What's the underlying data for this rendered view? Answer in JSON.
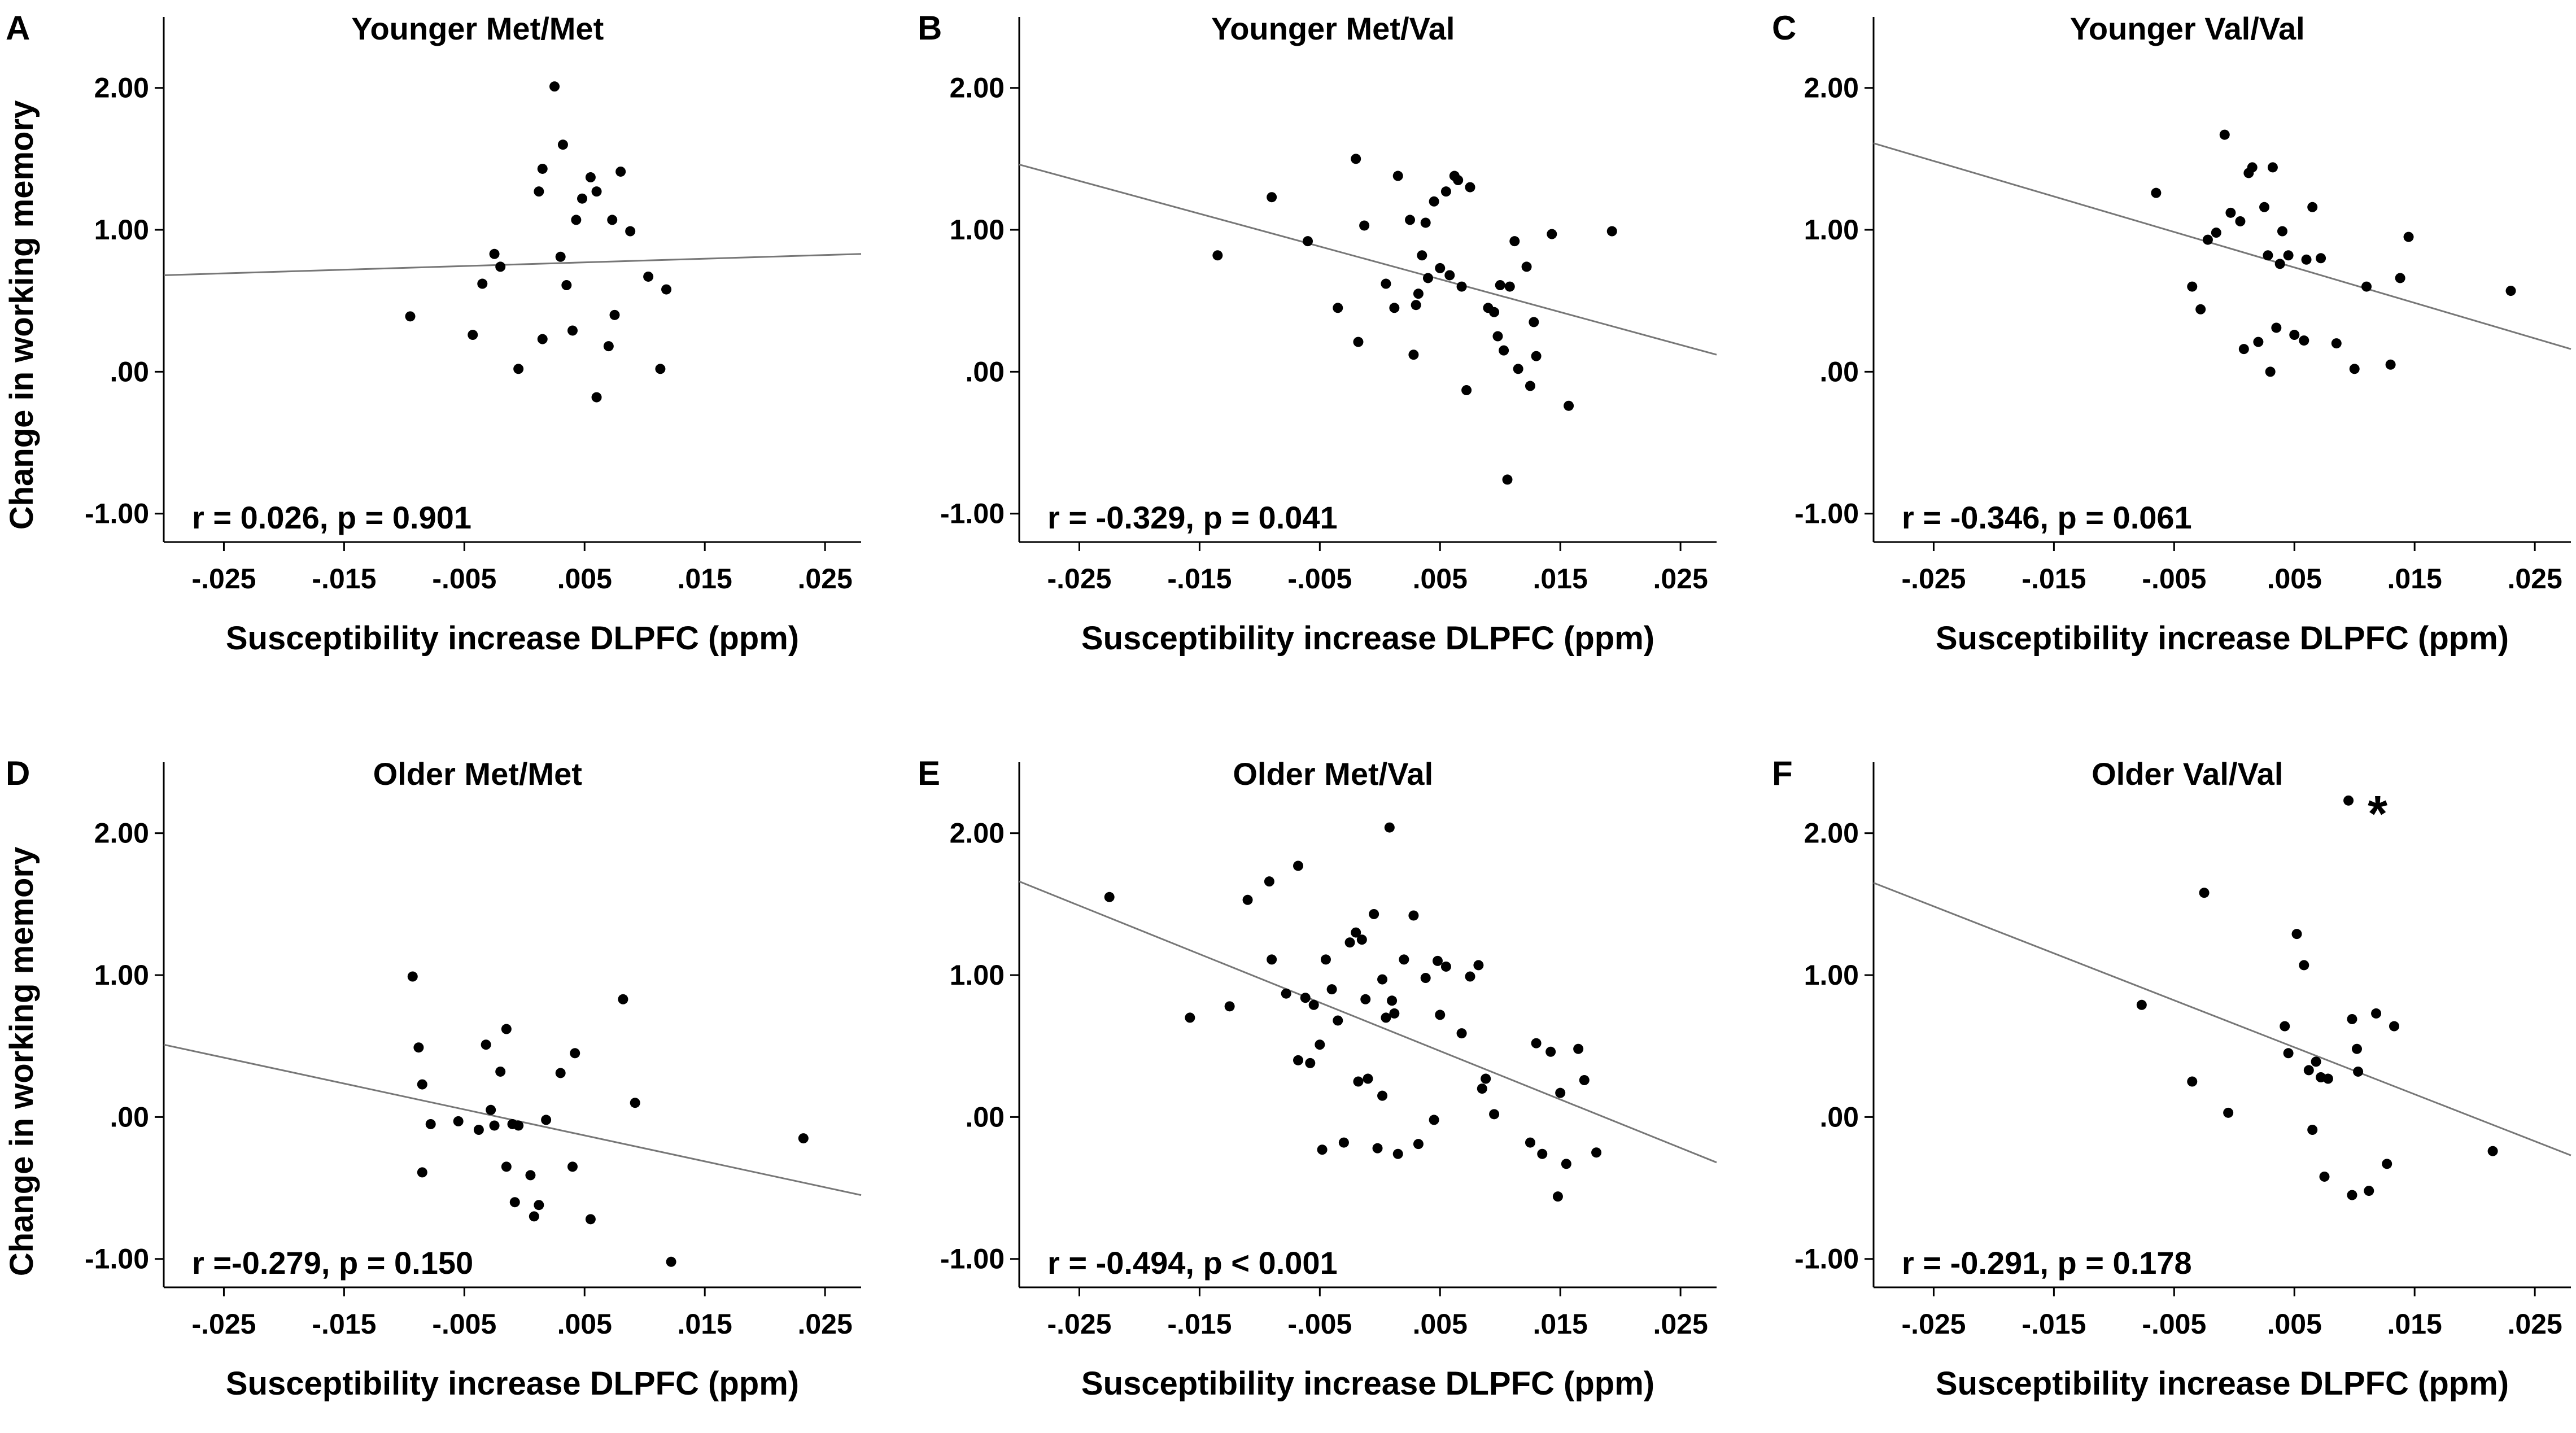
{
  "figure": {
    "ylabel": "Change in working memory",
    "xlabel": "Susceptibility increase DLPFC (ppm)"
  },
  "chart_data": [
    {
      "type": "scatter",
      "letter": "A",
      "title": "Younger Met/Met",
      "stats": "r = 0.026, p = 0.901",
      "xlabel": "Susceptibility increase DLPFC (ppm)",
      "ylabel": "Change in working memory",
      "xlim": [
        -0.03,
        0.028
      ],
      "ylim": [
        -1.2,
        2.5
      ],
      "xticks": [
        -0.025,
        -0.015,
        -0.005,
        0.005,
        0.015,
        0.025
      ],
      "xtick_labels": [
        "-.025",
        "-.015",
        "-.005",
        ".005",
        ".015",
        ".025"
      ],
      "yticks": [
        2,
        1,
        0,
        -1
      ],
      "ytick_labels": [
        "2.00",
        "1.00",
        ".00",
        "-1.00"
      ],
      "fit_line": [
        [
          -0.03,
          0.68
        ],
        [
          0.028,
          0.83
        ]
      ],
      "points": [
        [
          -0.0095,
          0.39
        ],
        [
          -0.0043,
          0.26
        ],
        [
          -0.0035,
          0.62
        ],
        [
          -0.0025,
          0.83
        ],
        [
          -0.002,
          0.74
        ],
        [
          -0.0005,
          0.02
        ],
        [
          0.0012,
          1.27
        ],
        [
          0.0015,
          1.43
        ],
        [
          0.0015,
          0.23
        ],
        [
          0.0025,
          2.01
        ],
        [
          0.003,
          0.81
        ],
        [
          0.0032,
          1.6
        ],
        [
          0.0035,
          0.61
        ],
        [
          0.004,
          0.29
        ],
        [
          0.0043,
          1.07
        ],
        [
          0.0048,
          1.22
        ],
        [
          0.0055,
          1.37
        ],
        [
          0.006,
          1.27
        ],
        [
          0.006,
          -0.18
        ],
        [
          0.007,
          0.18
        ],
        [
          0.0073,
          1.07
        ],
        [
          0.0075,
          0.4
        ],
        [
          0.008,
          1.41
        ],
        [
          0.0088,
          0.99
        ],
        [
          0.0103,
          0.67
        ],
        [
          0.0113,
          0.02
        ],
        [
          0.0118,
          0.58
        ]
      ],
      "star": null
    },
    {
      "type": "scatter",
      "letter": "B",
      "title": "Younger Met/Val",
      "stats": "r = -0.329, p = 0.041",
      "xlabel": "Susceptibility increase DLPFC (ppm)",
      "ylabel": "",
      "xlim": [
        -0.03,
        0.028
      ],
      "ylim": [
        -1.2,
        2.5
      ],
      "xticks": [
        -0.025,
        -0.015,
        -0.005,
        0.005,
        0.015,
        0.025
      ],
      "xtick_labels": [
        "-.025",
        "-.015",
        "-.005",
        ".005",
        ".015",
        ".025"
      ],
      "yticks": [
        2,
        1,
        0,
        -1
      ],
      "ytick_labels": [
        "2.00",
        "1.00",
        ".00",
        "-1.00"
      ],
      "fit_line": [
        [
          -0.03,
          1.46
        ],
        [
          0.028,
          0.12
        ]
      ],
      "points": [
        [
          -0.0135,
          0.82
        ],
        [
          -0.009,
          1.23
        ],
        [
          -0.006,
          0.92
        ],
        [
          -0.0035,
          0.45
        ],
        [
          -0.002,
          1.5
        ],
        [
          -0.0018,
          0.21
        ],
        [
          -0.0013,
          1.03
        ],
        [
          0.0005,
          0.62
        ],
        [
          0.0012,
          0.45
        ],
        [
          0.0015,
          1.38
        ],
        [
          0.0025,
          1.07
        ],
        [
          0.0028,
          0.12
        ],
        [
          0.003,
          0.47
        ],
        [
          0.0032,
          0.55
        ],
        [
          0.0035,
          0.82
        ],
        [
          0.0038,
          1.05
        ],
        [
          0.004,
          0.66
        ],
        [
          0.0045,
          1.2
        ],
        [
          0.005,
          0.73
        ],
        [
          0.0055,
          1.27
        ],
        [
          0.0058,
          0.68
        ],
        [
          0.0062,
          1.38
        ],
        [
          0.0065,
          1.35
        ],
        [
          0.0068,
          0.6
        ],
        [
          0.0072,
          -0.13
        ],
        [
          0.0075,
          1.3
        ],
        [
          0.009,
          0.45
        ],
        [
          0.0095,
          0.42
        ],
        [
          0.0098,
          0.25
        ],
        [
          0.01,
          0.61
        ],
        [
          0.0103,
          0.15
        ],
        [
          0.0106,
          -0.76
        ],
        [
          0.0108,
          0.6
        ],
        [
          0.0112,
          0.92
        ],
        [
          0.0115,
          0.02
        ],
        [
          0.0122,
          0.74
        ],
        [
          0.0125,
          -0.1
        ],
        [
          0.0128,
          0.35
        ],
        [
          0.013,
          0.11
        ],
        [
          0.0143,
          0.97
        ],
        [
          0.0157,
          -0.24
        ],
        [
          0.0193,
          0.99
        ]
      ],
      "star": null
    },
    {
      "type": "scatter",
      "letter": "C",
      "title": "Younger Val/Val",
      "stats": "r = -0.346, p = 0.061",
      "xlabel": "Susceptibility increase DLPFC (ppm)",
      "ylabel": "",
      "xlim": [
        -0.03,
        0.028
      ],
      "ylim": [
        -1.2,
        2.5
      ],
      "xticks": [
        -0.025,
        -0.015,
        -0.005,
        0.005,
        0.015,
        0.025
      ],
      "xtick_labels": [
        "-.025",
        "-.015",
        "-.005",
        ".005",
        ".015",
        ".025"
      ],
      "yticks": [
        2,
        1,
        0,
        -1
      ],
      "ytick_labels": [
        "2.00",
        "1.00",
        ".00",
        "-1.00"
      ],
      "fit_line": [
        [
          -0.03,
          1.61
        ],
        [
          0.028,
          0.16
        ]
      ],
      "points": [
        [
          -0.0065,
          1.26
        ],
        [
          -0.0035,
          0.6
        ],
        [
          -0.0028,
          0.44
        ],
        [
          -0.0022,
          0.93
        ],
        [
          -0.0015,
          0.98
        ],
        [
          -0.0008,
          1.67
        ],
        [
          -0.0003,
          1.12
        ],
        [
          0.0005,
          1.06
        ],
        [
          0.0008,
          0.16
        ],
        [
          0.0012,
          1.4
        ],
        [
          0.0015,
          1.44
        ],
        [
          0.002,
          0.21
        ],
        [
          0.0025,
          1.16
        ],
        [
          0.0028,
          0.82
        ],
        [
          0.003,
          0.0
        ],
        [
          0.0032,
          1.44
        ],
        [
          0.0035,
          0.31
        ],
        [
          0.0038,
          0.76
        ],
        [
          0.004,
          0.99
        ],
        [
          0.0045,
          0.82
        ],
        [
          0.005,
          0.26
        ],
        [
          0.0058,
          0.22
        ],
        [
          0.006,
          0.79
        ],
        [
          0.0065,
          1.16
        ],
        [
          0.0072,
          0.8
        ],
        [
          0.0085,
          0.2
        ],
        [
          0.01,
          0.02
        ],
        [
          0.011,
          0.6
        ],
        [
          0.013,
          0.05
        ],
        [
          0.0138,
          0.66
        ],
        [
          0.0145,
          0.95
        ],
        [
          0.023,
          0.57
        ]
      ],
      "star": null
    },
    {
      "type": "scatter",
      "letter": "D",
      "title": "Older Met/Met",
      "stats": "r =-0.279, p = 0.150",
      "xlabel": "Susceptibility increase DLPFC (ppm)",
      "ylabel": "Change in working memory",
      "xlim": [
        -0.03,
        0.028
      ],
      "ylim": [
        -1.2,
        2.5
      ],
      "xticks": [
        -0.025,
        -0.015,
        -0.005,
        0.005,
        0.015,
        0.025
      ],
      "xtick_labels": [
        "-.025",
        "-.015",
        "-.005",
        ".005",
        ".015",
        ".025"
      ],
      "yticks": [
        2,
        1,
        0,
        -1
      ],
      "ytick_labels": [
        "2.00",
        "1.00",
        ".00",
        "-1.00"
      ],
      "fit_line": [
        [
          -0.03,
          0.51
        ],
        [
          0.028,
          -0.55
        ]
      ],
      "points": [
        [
          -0.0093,
          0.99
        ],
        [
          -0.0088,
          0.49
        ],
        [
          -0.0085,
          0.23
        ],
        [
          -0.0085,
          -0.39
        ],
        [
          -0.0078,
          -0.05
        ],
        [
          -0.0055,
          -0.03
        ],
        [
          -0.0038,
          -0.09
        ],
        [
          -0.0032,
          0.51
        ],
        [
          -0.0028,
          0.05
        ],
        [
          -0.0025,
          -0.06
        ],
        [
          -0.002,
          0.32
        ],
        [
          -0.0015,
          0.62
        ],
        [
          -0.0015,
          -0.35
        ],
        [
          -0.001,
          -0.05
        ],
        [
          -0.0008,
          -0.6
        ],
        [
          -0.0005,
          -0.06
        ],
        [
          0.0005,
          -0.41
        ],
        [
          0.0008,
          -0.7
        ],
        [
          0.0012,
          -0.62
        ],
        [
          0.0018,
          -0.02
        ],
        [
          0.003,
          0.31
        ],
        [
          0.004,
          -0.35
        ],
        [
          0.0042,
          0.45
        ],
        [
          0.0055,
          -0.72
        ],
        [
          0.0082,
          0.83
        ],
        [
          0.0092,
          0.1
        ],
        [
          0.0122,
          -1.02
        ],
        [
          0.0232,
          -0.15
        ]
      ],
      "star": null
    },
    {
      "type": "scatter",
      "letter": "E",
      "title": "Older Met/Val",
      "stats": "r = -0.494, p < 0.001",
      "xlabel": "Susceptibility increase DLPFC (ppm)",
      "ylabel": "",
      "xlim": [
        -0.03,
        0.028
      ],
      "ylim": [
        -1.2,
        2.5
      ],
      "xticks": [
        -0.025,
        -0.015,
        -0.005,
        0.005,
        0.015,
        0.025
      ],
      "xtick_labels": [
        "-.025",
        "-.015",
        "-.005",
        ".005",
        ".015",
        ".025"
      ],
      "yticks": [
        2,
        1,
        0,
        -1
      ],
      "ytick_labels": [
        "2.00",
        "1.00",
        ".00",
        "-1.00"
      ],
      "fit_line": [
        [
          -0.03,
          1.66
        ],
        [
          0.028,
          -0.32
        ]
      ],
      "points": [
        [
          -0.0225,
          1.55
        ],
        [
          -0.0158,
          0.7
        ],
        [
          -0.0125,
          0.78
        ],
        [
          -0.011,
          1.53
        ],
        [
          -0.0092,
          1.66
        ],
        [
          -0.009,
          1.11
        ],
        [
          -0.0078,
          0.87
        ],
        [
          -0.0068,
          1.77
        ],
        [
          -0.0068,
          0.4
        ],
        [
          -0.0062,
          0.84
        ],
        [
          -0.0058,
          0.38
        ],
        [
          -0.0055,
          0.79
        ],
        [
          -0.005,
          0.51
        ],
        [
          -0.0048,
          -0.23
        ],
        [
          -0.0045,
          1.11
        ],
        [
          -0.004,
          0.9
        ],
        [
          -0.0035,
          0.68
        ],
        [
          -0.003,
          -0.18
        ],
        [
          -0.0025,
          1.23
        ],
        [
          -0.002,
          1.3
        ],
        [
          -0.0018,
          0.25
        ],
        [
          -0.0015,
          1.25
        ],
        [
          -0.0012,
          0.83
        ],
        [
          -0.001,
          0.27
        ],
        [
          -0.0005,
          1.43
        ],
        [
          -0.0002,
          -0.22
        ],
        [
          0.0002,
          0.97
        ],
        [
          0.0002,
          0.15
        ],
        [
          0.0005,
          0.7
        ],
        [
          0.0008,
          2.04
        ],
        [
          0.001,
          0.82
        ],
        [
          0.0012,
          0.73
        ],
        [
          0.0015,
          -0.26
        ],
        [
          0.002,
          1.11
        ],
        [
          0.0028,
          1.42
        ],
        [
          0.0032,
          -0.19
        ],
        [
          0.0038,
          0.98
        ],
        [
          0.0045,
          -0.02
        ],
        [
          0.0048,
          1.1
        ],
        [
          0.005,
          0.72
        ],
        [
          0.0055,
          1.06
        ],
        [
          0.0068,
          0.59
        ],
        [
          0.0075,
          0.99
        ],
        [
          0.0082,
          1.07
        ],
        [
          0.0085,
          0.2
        ],
        [
          0.0088,
          0.27
        ],
        [
          0.0095,
          0.02
        ],
        [
          0.0125,
          -0.18
        ],
        [
          0.013,
          0.52
        ],
        [
          0.0135,
          -0.26
        ],
        [
          0.0142,
          0.46
        ],
        [
          0.0148,
          -0.56
        ],
        [
          0.015,
          0.17
        ],
        [
          0.0155,
          -0.33
        ],
        [
          0.0165,
          0.48
        ],
        [
          0.017,
          0.26
        ],
        [
          0.018,
          -0.25
        ]
      ],
      "star": null
    },
    {
      "type": "scatter",
      "letter": "F",
      "title": "Older Val/Val",
      "stats": "r = -0.291, p = 0.178",
      "xlabel": "Susceptibility increase DLPFC (ppm)",
      "ylabel": "",
      "xlim": [
        -0.03,
        0.028
      ],
      "ylim": [
        -1.2,
        2.5
      ],
      "xticks": [
        -0.025,
        -0.015,
        -0.005,
        0.005,
        0.015,
        0.025
      ],
      "xtick_labels": [
        "-.025",
        "-.015",
        "-.005",
        ".005",
        ".015",
        ".025"
      ],
      "yticks": [
        2,
        1,
        0,
        -1
      ],
      "ytick_labels": [
        "2.00",
        "1.00",
        ".00",
        "-1.00"
      ],
      "fit_line": [
        [
          -0.03,
          1.65
        ],
        [
          0.028,
          -0.27
        ]
      ],
      "points": [
        [
          -0.0077,
          0.79
        ],
        [
          -0.0035,
          0.25
        ],
        [
          -0.0025,
          1.58
        ],
        [
          -0.0005,
          0.03
        ],
        [
          0.0042,
          0.64
        ],
        [
          0.0045,
          0.45
        ],
        [
          0.0052,
          1.29
        ],
        [
          0.0058,
          1.07
        ],
        [
          0.0062,
          0.33
        ],
        [
          0.0065,
          -0.09
        ],
        [
          0.0068,
          0.39
        ],
        [
          0.0072,
          0.28
        ],
        [
          0.0075,
          -0.42
        ],
        [
          0.0078,
          0.27
        ],
        [
          0.0095,
          2.23
        ],
        [
          0.0098,
          -0.55
        ],
        [
          0.0098,
          0.69
        ],
        [
          0.0102,
          0.48
        ],
        [
          0.0103,
          0.32
        ],
        [
          0.0112,
          -0.52
        ],
        [
          0.0118,
          0.73
        ],
        [
          0.0127,
          -0.33
        ],
        [
          0.0133,
          0.64
        ],
        [
          0.0215,
          -0.24
        ]
      ],
      "star": {
        "label": "*",
        "at": [
          0.0095,
          2.23
        ]
      }
    }
  ]
}
